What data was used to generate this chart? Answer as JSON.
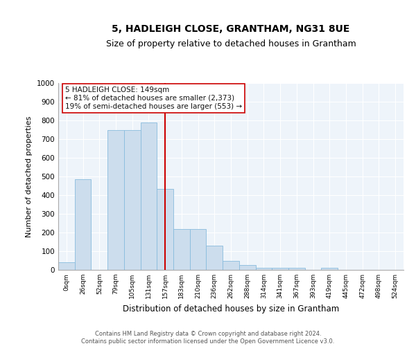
{
  "title1": "5, HADLEIGH CLOSE, GRANTHAM, NG31 8UE",
  "title2": "Size of property relative to detached houses in Grantham",
  "xlabel": "Distribution of detached houses by size in Grantham",
  "ylabel": "Number of detached properties",
  "bin_labels": [
    "0sqm",
    "26sqm",
    "52sqm",
    "79sqm",
    "105sqm",
    "131sqm",
    "157sqm",
    "183sqm",
    "210sqm",
    "236sqm",
    "262sqm",
    "288sqm",
    "314sqm",
    "341sqm",
    "367sqm",
    "393sqm",
    "419sqm",
    "445sqm",
    "472sqm",
    "498sqm",
    "524sqm"
  ],
  "bar_heights": [
    40,
    485,
    0,
    748,
    750,
    790,
    435,
    218,
    218,
    130,
    50,
    25,
    10,
    10,
    10,
    0,
    10,
    0,
    0,
    0,
    0
  ],
  "bar_color": "#ccdded",
  "bar_edge_color": "#88bbdd",
  "vline_x": 6.0,
  "vline_color": "#cc0000",
  "annotation_text": "5 HADLEIGH CLOSE: 149sqm\n← 81% of detached houses are smaller (2,373)\n19% of semi-detached houses are larger (553) →",
  "annotation_box_color": "#ffffff",
  "annotation_box_edge": "#cc0000",
  "ylim": [
    0,
    1000
  ],
  "yticks": [
    0,
    100,
    200,
    300,
    400,
    500,
    600,
    700,
    800,
    900,
    1000
  ],
  "footer_text": "Contains HM Land Registry data © Crown copyright and database right 2024.\nContains public sector information licensed under the Open Government Licence v3.0.",
  "bg_color": "#ffffff",
  "grid_color": "#ccddee",
  "title1_fontsize": 10,
  "title2_fontsize": 9
}
